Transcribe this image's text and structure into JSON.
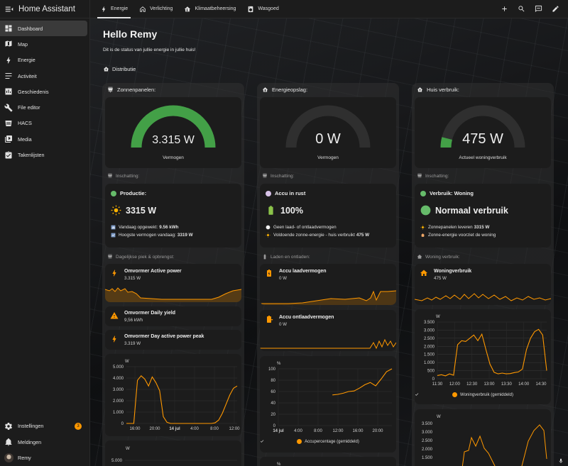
{
  "app": {
    "title": "Home Assistant"
  },
  "sidebar": {
    "items": [
      {
        "label": "Dashboard",
        "icon": "dashboard-icon",
        "active": true
      },
      {
        "label": "Map",
        "icon": "map-icon"
      },
      {
        "label": "Energie",
        "icon": "lightning-bolt-icon"
      },
      {
        "label": "Activiteit",
        "icon": "activity-list-icon"
      },
      {
        "label": "Geschiedenis",
        "icon": "history-chart-icon"
      },
      {
        "label": "File editor",
        "icon": "wrench-icon"
      },
      {
        "label": "HACS",
        "icon": "hacs-icon"
      },
      {
        "label": "Media",
        "icon": "media-icon"
      },
      {
        "label": "Takenlijsten",
        "icon": "clipboard-list-icon"
      }
    ],
    "bottom": {
      "settings_label": "Instellingen",
      "settings_badge": "3",
      "notifications_label": "Meldingen",
      "user_label": "Remy"
    }
  },
  "tabs": [
    {
      "label": "Energie",
      "icon": "lightning-bolt-icon",
      "active": true
    },
    {
      "label": "Verlichting",
      "icon": "home-outline-icon"
    },
    {
      "label": "Klimaatbeheersing",
      "icon": "home-thermometer-icon"
    },
    {
      "label": "Wasgoed",
      "icon": "washing-machine-icon"
    }
  ],
  "header": {
    "greeting": "Hello Remy",
    "subtitle": "Dit is de status van jullie energie in jullie huis!",
    "section": "Distributie"
  },
  "columns": {
    "solar": {
      "title": "Zonnenpanelen:",
      "gauge": {
        "value": "3.315 W",
        "name": "Vermogen",
        "fraction": 1.0,
        "color": "#43a047"
      },
      "insight_title": "Inschatting:",
      "status": {
        "dot_color": "#66bb6a",
        "label": "Productie:",
        "big": "3315 W",
        "line1_text": "Vandaag opgewekt:",
        "line1_value": "9.56 kWh",
        "line2_text": "Hoogste vermogen vandaag:",
        "line2_value": "3319 W"
      },
      "section2_title": "Dagelijkse piek & opbrengst:",
      "entities": [
        {
          "name": "Omvormer Active power",
          "value": "3.315 W"
        },
        {
          "name": "Omvormer Daily yield",
          "value": "9,56 kWh"
        },
        {
          "name": "Omvormer Day active power peak",
          "value": "3.319 W"
        }
      ],
      "chart_unit": "W"
    },
    "storage": {
      "title": "Energieopslag:",
      "gauge": {
        "value": "0 W",
        "name": "Vermogen",
        "fraction": 0.0,
        "color": "#43a047"
      },
      "insight_title": "Inschatting:",
      "status": {
        "dot_color": "#d8c2e8",
        "label": "Accu in rust",
        "big": "100%",
        "line1_text": "Geen laad- of ontlaadvermogen",
        "line2_text": "Voldoende zonne-energie - huis verbruikt",
        "line2_value": "475 W"
      },
      "section2_title": "Laden en ontladen:",
      "entities": [
        {
          "name": "Accu laadvermogen",
          "value": "0 W"
        },
        {
          "name": "Accu ontlaadvermogen",
          "value": "0 W"
        }
      ],
      "chart_unit": "%",
      "legend": "Accupercentage (gemiddeld)",
      "chart2_unit": "%"
    },
    "house": {
      "title": "Huis verbruik:",
      "gauge": {
        "value": "475 W",
        "name": "Actueel woningverbruik",
        "fraction": 0.08,
        "color": "#43a047"
      },
      "insight_title": "Inschatting:",
      "status": {
        "dot_color": "#66bb6a",
        "label": "Verbruik: Woning",
        "big": "Normaal verbruik",
        "line1_text": "Zonnepanelen leveren",
        "line1_value": "3315 W",
        "line2_text": "Zonne-energie voorziet de woning"
      },
      "section2_title": "Woning verbruik:",
      "entities": [
        {
          "name": "Woningverbruik",
          "value": "475 W"
        }
      ],
      "chart_unit": "W",
      "legend": "Woningverbruik (gemiddeld)",
      "chart2_unit": "W"
    }
  },
  "chart_data": [
    {
      "type": "line",
      "series": [
        {
          "values": [
            0,
            0,
            0,
            3800,
            4200,
            3900,
            3300,
            4100,
            3600,
            2900,
            600,
            100,
            0,
            0,
            0,
            0,
            0,
            0,
            0,
            0,
            0,
            0,
            0,
            0,
            50,
            300,
            900,
            1700,
            2500,
            3100,
            3300
          ]
        }
      ],
      "x_ticks": [
        "16:00",
        "20:00",
        "14 jul",
        "4:00",
        "8:00",
        "12:00"
      ],
      "ylabel": "W",
      "y_ticks": [
        0,
        1000,
        2000,
        3000,
        4000,
        5000
      ],
      "ylim": [
        0,
        5000
      ]
    },
    {
      "type": "line",
      "series": [
        {
          "name": "Accupercentage (gemiddeld)",
          "values": [
            null,
            null,
            null,
            null,
            null,
            null,
            null,
            null,
            null,
            null,
            54,
            55,
            57,
            60,
            61,
            66,
            72,
            76,
            70,
            82,
            95,
            100
          ]
        }
      ],
      "x_ticks": [
        "14 jul",
        "4:00",
        "8:00",
        "12:00",
        "16:00",
        "20:00"
      ],
      "ylabel": "%",
      "y_ticks": [
        0,
        20,
        40,
        60,
        80,
        100
      ],
      "ylim": [
        0,
        100
      ]
    },
    {
      "type": "line",
      "series": [
        {
          "name": "Woningverbruik (gemiddeld)",
          "values": [
            200,
            250,
            180,
            300,
            220,
            2100,
            2350,
            2300,
            2500,
            2700,
            2350,
            2750,
            1800,
            900,
            400,
            300,
            350,
            300,
            320,
            380,
            420,
            600,
            1800,
            2500,
            2900,
            3050,
            2700,
            500
          ]
        }
      ],
      "x_ticks": [
        "11:30",
        "12:00",
        "12:30",
        "13:00",
        "13:30",
        "14:00",
        "14:30"
      ],
      "ylabel": "W",
      "y_ticks": [
        0,
        500,
        1000,
        1500,
        2000,
        2500,
        3000,
        3500
      ],
      "ylim": [
        0,
        3500
      ]
    }
  ]
}
